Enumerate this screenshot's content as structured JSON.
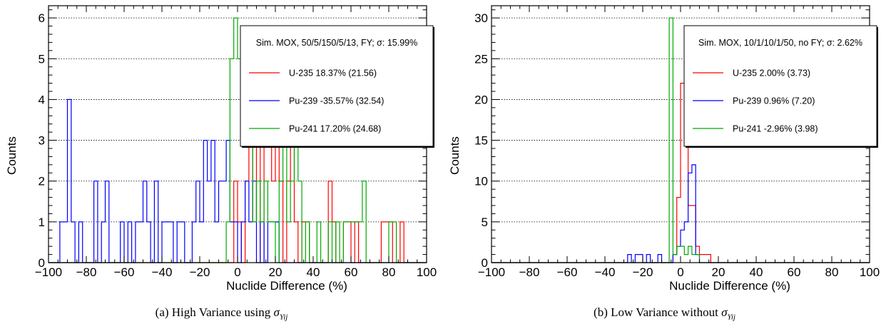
{
  "chart_data": [
    {
      "type": "histogram",
      "xlabel": "Nuclide Difference (%)",
      "ylabel": "Counts",
      "xlim": [
        -100,
        100
      ],
      "ylim": [
        0,
        6.3
      ],
      "xticks": [
        "−100",
        "−80",
        "−60",
        "−40",
        "−20",
        "0",
        "20",
        "40",
        "60",
        "80",
        "100"
      ],
      "yticks": [
        "0",
        "1",
        "2",
        "3",
        "4",
        "5",
        "6"
      ],
      "bin_width": 2,
      "grid": "horizontal dotted",
      "legend_position": "top-right",
      "legend_title": "Sim. MOX, 50/5/150/5/13, FY; σ: 15.99%",
      "series": [
        {
          "name": "U-235 18.37% (21.56)",
          "color": "#ff0000",
          "bins": [
            [
              -2,
              2
            ],
            [
              0,
              1
            ],
            [
              4,
              2
            ],
            [
              6,
              3
            ],
            [
              8,
              1
            ],
            [
              10,
              3
            ],
            [
              14,
              4
            ],
            [
              16,
              3
            ],
            [
              18,
              2
            ],
            [
              20,
              3
            ],
            [
              22,
              2
            ],
            [
              26,
              2
            ],
            [
              28,
              3
            ],
            [
              30,
              1
            ],
            [
              34,
              1
            ],
            [
              36,
              1
            ],
            [
              48,
              2
            ],
            [
              50,
              1
            ],
            [
              56,
              1
            ],
            [
              58,
              1
            ],
            [
              62,
              1
            ],
            [
              76,
              1
            ],
            [
              78,
              1
            ],
            [
              80,
              1
            ],
            [
              86,
              1
            ]
          ]
        },
        {
          "name": "Pu-239 -35.57% (32.54)",
          "color": "#0000ff",
          "bins": [
            [
              -94,
              1
            ],
            [
              -92,
              1
            ],
            [
              -90,
              4
            ],
            [
              -88,
              1
            ],
            [
              -84,
              1
            ],
            [
              -76,
              2
            ],
            [
              -72,
              1
            ],
            [
              -70,
              2
            ],
            [
              -62,
              1
            ],
            [
              -58,
              1
            ],
            [
              -54,
              1
            ],
            [
              -52,
              1
            ],
            [
              -50,
              2
            ],
            [
              -48,
              1
            ],
            [
              -44,
              2
            ],
            [
              -40,
              1
            ],
            [
              -38,
              1
            ],
            [
              -36,
              1
            ],
            [
              -32,
              1
            ],
            [
              -30,
              1
            ],
            [
              -24,
              1
            ],
            [
              -22,
              2
            ],
            [
              -20,
              1
            ],
            [
              -18,
              3
            ],
            [
              -16,
              2
            ],
            [
              -14,
              3
            ],
            [
              -12,
              1
            ],
            [
              -10,
              2
            ],
            [
              -8,
              2
            ],
            [
              -6,
              3
            ],
            [
              -4,
              1
            ],
            [
              -2,
              1
            ],
            [
              2,
              1
            ],
            [
              4,
              2
            ],
            [
              6,
              1
            ],
            [
              8,
              2
            ],
            [
              12,
              1
            ],
            [
              16,
              1
            ],
            [
              18,
              1
            ],
            [
              20,
              1
            ]
          ]
        },
        {
          "name": "Pu-241 17.20% (24.68)",
          "color": "#00aa00",
          "bins": [
            [
              -6,
              1
            ],
            [
              -4,
              5
            ],
            [
              -2,
              6
            ],
            [
              0,
              5
            ],
            [
              2,
              4
            ],
            [
              4,
              3
            ],
            [
              6,
              3
            ],
            [
              8,
              1
            ],
            [
              10,
              2
            ],
            [
              12,
              1
            ],
            [
              14,
              2
            ],
            [
              16,
              1
            ],
            [
              18,
              1
            ],
            [
              22,
              2
            ],
            [
              24,
              3
            ],
            [
              26,
              1
            ],
            [
              28,
              2
            ],
            [
              30,
              3
            ],
            [
              32,
              2
            ],
            [
              36,
              1
            ],
            [
              42,
              1
            ],
            [
              48,
              1
            ],
            [
              52,
              1
            ],
            [
              56,
              1
            ],
            [
              58,
              1
            ],
            [
              60,
              1
            ],
            [
              62,
              1
            ],
            [
              64,
              1
            ],
            [
              66,
              2
            ],
            [
              80,
              1
            ],
            [
              82,
              1
            ]
          ]
        }
      ]
    },
    {
      "type": "histogram",
      "xlabel": "Nuclide Difference (%)",
      "ylabel": "Counts",
      "xlim": [
        -100,
        100
      ],
      "ylim": [
        0,
        31.5
      ],
      "xticks": [
        "−100",
        "−80",
        "−60",
        "−40",
        "−20",
        "0",
        "20",
        "40",
        "60",
        "80",
        "100"
      ],
      "yticks": [
        "0",
        "5",
        "10",
        "15",
        "20",
        "25",
        "30"
      ],
      "bin_width": 2,
      "grid": "horizontal dotted",
      "legend_position": "top-right",
      "legend_title": "Sim. MOX, 10/1/10/1/50, no FY; σ: 2.62%",
      "series": [
        {
          "name": "U-235 2.00% (3.73)",
          "color": "#ff0000",
          "bins": [
            [
              -4,
              1
            ],
            [
              -2,
              8
            ],
            [
              0,
              22
            ],
            [
              2,
              18
            ],
            [
              4,
              7
            ],
            [
              6,
              7
            ],
            [
              8,
              2
            ],
            [
              10,
              1
            ],
            [
              12,
              1
            ],
            [
              14,
              1
            ]
          ]
        },
        {
          "name": "Pu-239 0.96% (7.20)",
          "color": "#0000ff",
          "bins": [
            [
              -28,
              1
            ],
            [
              -24,
              1
            ],
            [
              -22,
              1
            ],
            [
              -18,
              1
            ],
            [
              -12,
              1
            ],
            [
              -4,
              1
            ],
            [
              -2,
              2
            ],
            [
              0,
              4
            ],
            [
              2,
              5
            ],
            [
              4,
              11
            ],
            [
              6,
              12
            ],
            [
              8,
              1
            ]
          ]
        },
        {
          "name": "Pu-241 -2.96% (3.98)",
          "color": "#00aa00",
          "bins": [
            [
              -6,
              30
            ],
            [
              -4,
              1
            ],
            [
              -2,
              2
            ],
            [
              0,
              2
            ],
            [
              2,
              1
            ],
            [
              4,
              2
            ],
            [
              6,
              1
            ],
            [
              8,
              1
            ]
          ]
        }
      ]
    }
  ],
  "captions": [
    {
      "text": "(a) High Variance using ",
      "sym": "σ",
      "sub": "Yij"
    },
    {
      "text": "(b) Low Variance without ",
      "sym": "σ",
      "sub": "Yij"
    }
  ]
}
